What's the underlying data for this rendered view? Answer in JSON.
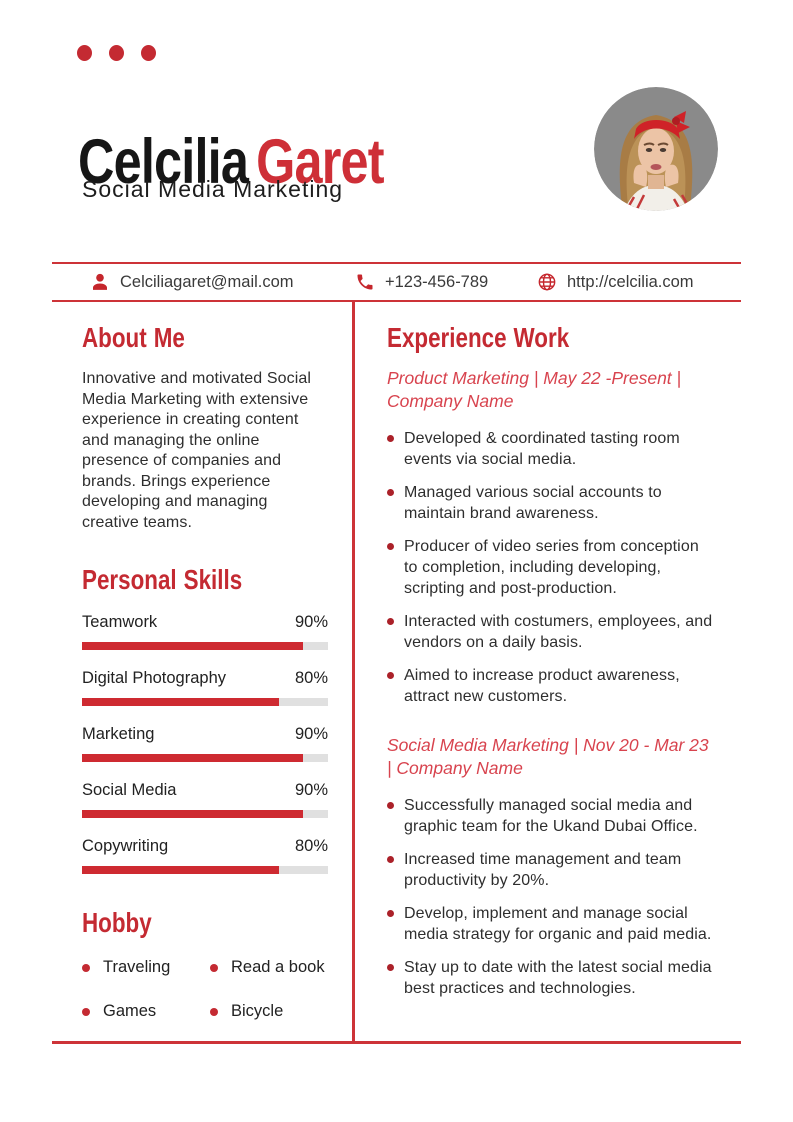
{
  "colors": {
    "accent": "#c42a32",
    "name_red": "#ce2f37",
    "ink": "#161616",
    "line": "#cd3338",
    "sub_red": "#d8434e",
    "bar_red": "#ce2a31",
    "dot_red": "#ab2129",
    "text": "#2e2e2e",
    "track": "#e0e0e0",
    "photo_bg": "#8a8a8a",
    "contact_text": "#3a3a3a"
  },
  "header": {
    "first_name": "Celcilia",
    "last_name": "Garet",
    "subtitle": "Social Media Marketing"
  },
  "icons": {
    "email": "person-icon",
    "phone": "phone-icon",
    "website": "globe-icon",
    "decoration": "three-red-dots"
  },
  "contact": {
    "email": "Celciliagaret@mail.com",
    "phone": "+123-456-789",
    "website": "http://celcilia.com"
  },
  "about": {
    "heading": "About Me",
    "text": "Innovative and motivated Social Media Marketing with extensive experience in creating content and managing the online presence of companies and brands. Brings experience developing and managing creative teams."
  },
  "skills": {
    "heading": "Personal Skills",
    "items": [
      {
        "label": "Teamwork",
        "percent": "90%",
        "value": 90
      },
      {
        "label": "Digital Photography",
        "percent": "80%",
        "value": 80
      },
      {
        "label": "Marketing",
        "percent": "90%",
        "value": 90
      },
      {
        "label": "Social Media",
        "percent": "90%",
        "value": 90
      },
      {
        "label": "Copywriting",
        "percent": "80%",
        "value": 80
      }
    ]
  },
  "hobby": {
    "heading": "Hobby",
    "items": [
      "Traveling",
      "Read a book",
      "Games",
      "Bicycle"
    ]
  },
  "experience": {
    "heading": "Experience Work",
    "jobs": [
      {
        "title": "Product Marketing | May 22 -Present | Company Name",
        "bullets": [
          "Developed & coordinated tasting room events via social media.",
          "Managed various social accounts to maintain brand awareness.",
          "Producer of video series from conception to completion, including developing, scripting and post-production.",
          "Interacted with costumers, employees, and vendors on a daily basis.",
          "Aimed to increase product awareness, attract new customers."
        ]
      },
      {
        "title": "Social Media Marketing | Nov 20 - Mar 23 | Company Name",
        "bullets": [
          "Successfully managed social media and graphic team for the Ukand Dubai Office.",
          "Increased time management and team productivity by 20%.",
          "Develop, implement and manage social media strategy for organic and paid media.",
          "Stay up to date with the latest social media best practices and technologies."
        ]
      }
    ]
  }
}
